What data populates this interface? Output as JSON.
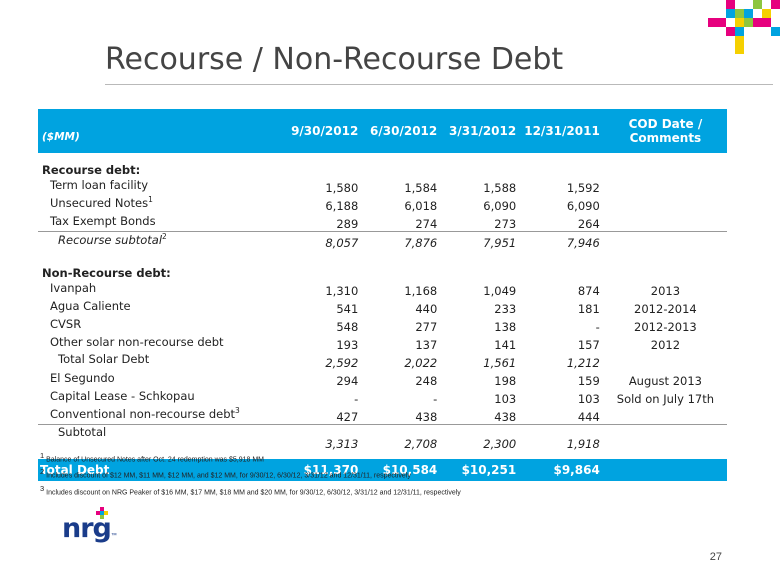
{
  "title": "Recourse / Non-Recourse Debt",
  "table": {
    "units_label": "($MM)",
    "columns": [
      "9/30/2012",
      "6/30/2012",
      "3/31/2012",
      "12/31/2011"
    ],
    "cod_header_line1": "COD Date /",
    "cod_header_line2": "Comments",
    "recourse_header": "Recourse debt:",
    "recourse_rows": [
      {
        "label": "Term loan facility",
        "sup": "",
        "values": [
          "1,580",
          "1,584",
          "1,588",
          "1,592"
        ],
        "comment": ""
      },
      {
        "label": "Unsecured Notes",
        "sup": "1",
        "values": [
          "6,188",
          "6,018",
          "6,090",
          "6,090"
        ],
        "comment": ""
      },
      {
        "label": "Tax Exempt Bonds",
        "sup": "",
        "values": [
          "289",
          "274",
          "273",
          "264"
        ],
        "comment": ""
      }
    ],
    "recourse_subtotal": {
      "label": "Recourse subtotal",
      "sup": "2",
      "values": [
        "8,057",
        "7,876",
        "7,951",
        "7,946"
      ]
    },
    "nonrecourse_header": "Non-Recourse debt:",
    "solar_rows": [
      {
        "label": "Ivanpah",
        "sup": "",
        "values": [
          "1,310",
          "1,168",
          "1,049",
          "874"
        ],
        "comment": "2013"
      },
      {
        "label": "Agua Caliente",
        "sup": "",
        "values": [
          "541",
          "440",
          "233",
          "181"
        ],
        "comment": "2012-2014"
      },
      {
        "label": "CVSR",
        "sup": "",
        "values": [
          "548",
          "277",
          "138",
          "-"
        ],
        "comment": "2012-2013"
      },
      {
        "label": "Other solar non-recourse debt",
        "sup": "",
        "values": [
          "193",
          "137",
          "141",
          "157"
        ],
        "comment": "2012"
      }
    ],
    "solar_total": {
      "label": "Total Solar Debt",
      "values": [
        "2,592",
        "2,022",
        "1,561",
        "1,212"
      ]
    },
    "conv_rows": [
      {
        "label": "El Segundo",
        "sup": "",
        "values": [
          "294",
          "248",
          "198",
          "159"
        ],
        "comment": "August 2013"
      },
      {
        "label": "Capital Lease - Schkopau",
        "sup": "",
        "values": [
          "-",
          "-",
          "103",
          "103"
        ],
        "comment": "Sold on July 17th"
      },
      {
        "label": "Conventional non-recourse debt",
        "sup": "3",
        "values": [
          "427",
          "438",
          "438",
          "444"
        ],
        "comment": ""
      }
    ],
    "subtotal": {
      "label": "Subtotal",
      "values": [
        "3,313",
        "2,708",
        "2,300",
        "1,918"
      ]
    },
    "total": {
      "label": "Total Debt",
      "values": [
        "$11,370",
        "$10,584",
        "$10,251",
        "$9,864"
      ]
    }
  },
  "footnotes": [
    {
      "num": "1",
      "text": "Balance of Unsecured Notes after Oct. 24 redemption was $5,918 MM"
    },
    {
      "num": "2",
      "text": "Includes discount of $12 MM, $11 MM, $12 MM, and $12 MM, for 9/30/12, 6/30/12, 3/31/12 and 12/31/11, respectively"
    },
    {
      "num": "3",
      "text": "Includes discount on NRG Peaker of $16 MM, $17 MM, $18 MM and $20 MM, for 9/30/12, 6/30/12, 3/31/12 and 12/31/11, respectively"
    }
  ],
  "logo_text": "nrg",
  "logo_tm": "™",
  "page_number": "27",
  "colors": {
    "accent": "#00a3e0",
    "logo_blue": "#1a3c8a",
    "magenta": "#e6007e",
    "yellow": "#f5d000",
    "green": "#8dc63f",
    "cyan": "#00a3e0"
  }
}
